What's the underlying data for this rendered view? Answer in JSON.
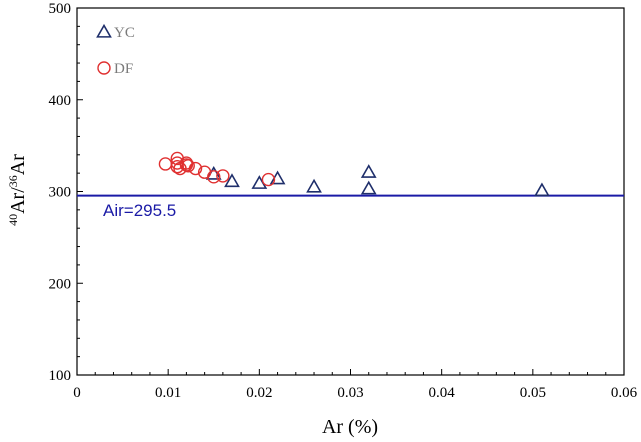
{
  "chart_data": {
    "type": "scatter",
    "xlabel": "Ar (%)",
    "ylabel_parts": {
      "sup1": "40",
      "main1": "Ar/",
      "sup2": "36",
      "main2": "Ar"
    },
    "xlim": [
      0,
      0.06
    ],
    "ylim": [
      100,
      500
    ],
    "x_ticks": [
      0,
      0.01,
      0.02,
      0.03,
      0.04,
      0.05,
      0.06
    ],
    "x_tick_labels": [
      "0",
      "0.01",
      "0.02",
      "0.03",
      "0.04",
      "0.05",
      "0.06"
    ],
    "y_ticks": [
      100,
      200,
      300,
      400,
      500
    ],
    "y_tick_labels": [
      "100",
      "200",
      "300",
      "400",
      "500"
    ],
    "grid": false,
    "legend_position": "top-left",
    "series": [
      {
        "name": "YC",
        "marker": "triangle",
        "color": "#1f2f6b",
        "points": [
          [
            0.015,
            319
          ],
          [
            0.017,
            311
          ],
          [
            0.02,
            309
          ],
          [
            0.022,
            314
          ],
          [
            0.026,
            305
          ],
          [
            0.032,
            321
          ],
          [
            0.032,
            303
          ],
          [
            0.051,
            301
          ]
        ]
      },
      {
        "name": "DF",
        "marker": "circle",
        "color": "#e03030",
        "points": [
          [
            0.0097,
            330
          ],
          [
            0.011,
            336
          ],
          [
            0.011,
            331
          ],
          [
            0.011,
            327
          ],
          [
            0.0113,
            325
          ],
          [
            0.012,
            331
          ],
          [
            0.012,
            329
          ],
          [
            0.0122,
            328
          ],
          [
            0.013,
            325
          ],
          [
            0.014,
            321
          ],
          [
            0.015,
            316
          ],
          [
            0.016,
            317
          ],
          [
            0.021,
            313
          ]
        ]
      }
    ],
    "reference_line": {
      "value": 295.5,
      "label": "Air=295.5",
      "color": "#1a1aa6"
    }
  }
}
